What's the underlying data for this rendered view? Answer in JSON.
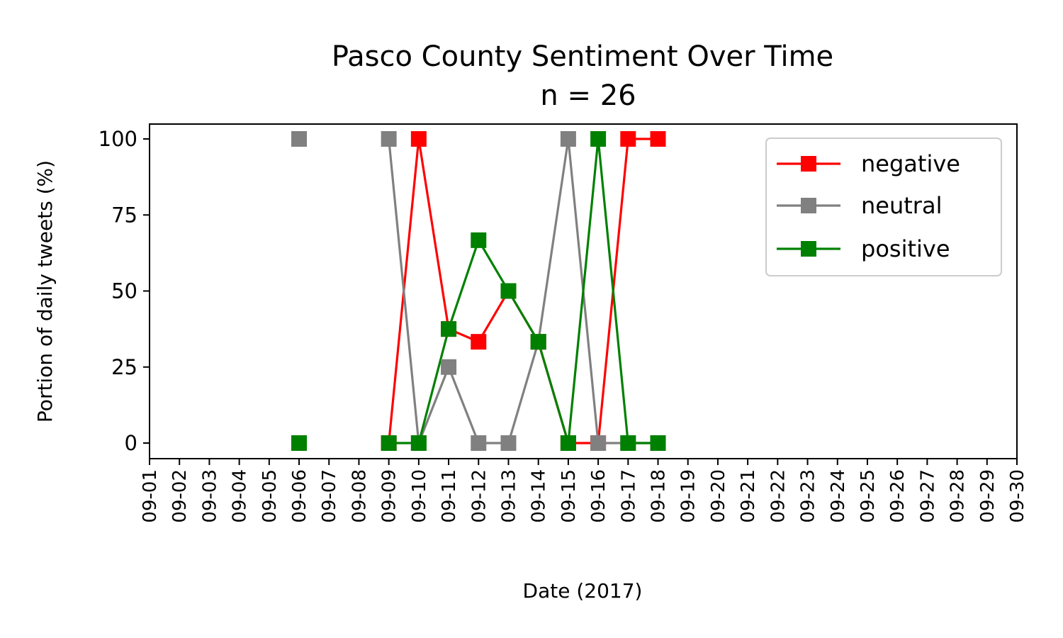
{
  "chart_data": {
    "type": "line",
    "title": "Pasco County Sentiment Over Time",
    "subtitle": "n = 26",
    "xlabel": "Date (2017)",
    "ylabel": "Portion of daily tweets (%)",
    "x": [
      "09-01",
      "09-02",
      "09-03",
      "09-04",
      "09-05",
      "09-06",
      "09-07",
      "09-08",
      "09-09",
      "09-10",
      "09-11",
      "09-12",
      "09-13",
      "09-14",
      "09-15",
      "09-16",
      "09-17",
      "09-18",
      "09-19",
      "09-20",
      "09-21",
      "09-22",
      "09-23",
      "09-24",
      "09-25",
      "09-26",
      "09-27",
      "09-28",
      "09-29",
      "09-30"
    ],
    "yticks": [
      0,
      25,
      50,
      75,
      100
    ],
    "ylim": [
      -5,
      105
    ],
    "grid": false,
    "legend_position": "top-right",
    "series": [
      {
        "name": "negative",
        "color": "#ff0000",
        "marker": "square",
        "points": [
          {
            "x": "09-09",
            "y": 0
          },
          {
            "x": "09-10",
            "y": 100
          },
          {
            "x": "09-11",
            "y": 37.5
          },
          {
            "x": "09-12",
            "y": 33.3
          },
          {
            "x": "09-13",
            "y": 50
          },
          {
            "x": "09-14",
            "y": 33.3
          },
          {
            "x": "09-15",
            "y": 0
          },
          {
            "x": "09-16",
            "y": 0
          },
          {
            "x": "09-17",
            "y": 100
          },
          {
            "x": "09-18",
            "y": 100
          }
        ],
        "isolated_points": [
          {
            "x": "09-06",
            "y": 0
          }
        ]
      },
      {
        "name": "neutral",
        "color": "#808080",
        "marker": "square",
        "points": [
          {
            "x": "09-09",
            "y": 100
          },
          {
            "x": "09-10",
            "y": 0
          },
          {
            "x": "09-11",
            "y": 25
          },
          {
            "x": "09-12",
            "y": 0
          },
          {
            "x": "09-13",
            "y": 0
          },
          {
            "x": "09-14",
            "y": 33.3
          },
          {
            "x": "09-15",
            "y": 100
          },
          {
            "x": "09-16",
            "y": 0
          },
          {
            "x": "09-17",
            "y": 0
          },
          {
            "x": "09-18",
            "y": 0
          }
        ],
        "isolated_points": [
          {
            "x": "09-06",
            "y": 100
          }
        ]
      },
      {
        "name": "positive",
        "color": "#008000",
        "marker": "square",
        "points": [
          {
            "x": "09-09",
            "y": 0
          },
          {
            "x": "09-10",
            "y": 0
          },
          {
            "x": "09-11",
            "y": 37.5
          },
          {
            "x": "09-12",
            "y": 66.7
          },
          {
            "x": "09-13",
            "y": 50
          },
          {
            "x": "09-14",
            "y": 33.3
          },
          {
            "x": "09-15",
            "y": 0
          },
          {
            "x": "09-16",
            "y": 100
          },
          {
            "x": "09-17",
            "y": 0
          },
          {
            "x": "09-18",
            "y": 0
          }
        ],
        "isolated_points": [
          {
            "x": "09-06",
            "y": 0
          }
        ]
      }
    ]
  }
}
